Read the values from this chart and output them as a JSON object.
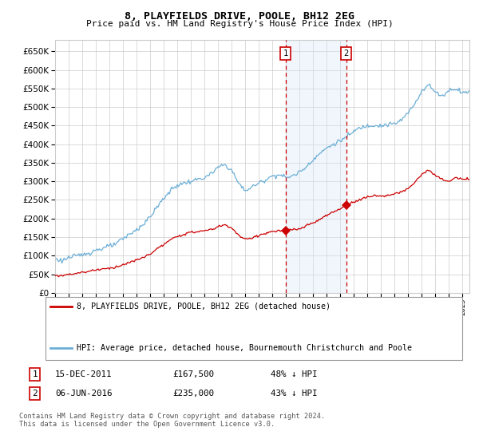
{
  "title": "8, PLAYFIELDS DRIVE, POOLE, BH12 2EG",
  "subtitle": "Price paid vs. HM Land Registry's House Price Index (HPI)",
  "legend_line1": "8, PLAYFIELDS DRIVE, POOLE, BH12 2EG (detached house)",
  "legend_line2": "HPI: Average price, detached house, Bournemouth Christchurch and Poole",
  "footnote1": "Contains HM Land Registry data © Crown copyright and database right 2024.",
  "footnote2": "This data is licensed under the Open Government Licence v3.0.",
  "sale1_date": "15-DEC-2011",
  "sale1_price": "£167,500",
  "sale1_label": "48% ↓ HPI",
  "sale2_date": "06-JUN-2016",
  "sale2_price": "£235,000",
  "sale2_label": "43% ↓ HPI",
  "sale1_x": 2011.96,
  "sale2_x": 2016.43,
  "sale1_y": 167500,
  "sale2_y": 235000,
  "hpi_color": "#6baed6",
  "price_color": "#cc0000",
  "grid_color": "#cccccc",
  "bg_color": "#ffffff",
  "shade_color": "#d6e8f5",
  "ylim": [
    0,
    680000
  ],
  "yticks": [
    0,
    50000,
    100000,
    150000,
    200000,
    250000,
    300000,
    350000,
    400000,
    450000,
    500000,
    550000,
    600000,
    650000
  ],
  "xmin": 1995.0,
  "xmax": 2025.5
}
